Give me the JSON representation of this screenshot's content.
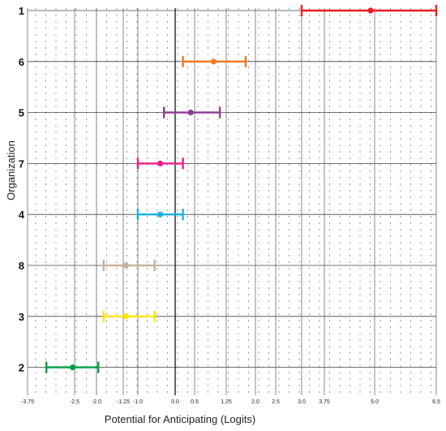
{
  "chart_data": {
    "type": "scatter",
    "subtype": "error-bar",
    "title": "",
    "xlabel": "Potential for Anticipating (Logits)",
    "ylabel": "Organization",
    "xlim": [
      -3.75,
      6.5
    ],
    "x_ticks": [
      -3.75,
      -2.5,
      -2.0,
      -1.25,
      -1.0,
      0.0,
      0.5,
      1.25,
      2.0,
      2.5,
      3.0,
      3.75,
      5.0,
      6.5
    ],
    "x_tick_labels": [
      "-3.75",
      "-2.5",
      "-2.0",
      "-1.25",
      "-1.0",
      "0.0",
      "0.5",
      "1.25",
      "2.0",
      "2.5",
      "3.0",
      "3.75",
      "5.0",
      "6.5"
    ],
    "categories": [
      "1",
      "6",
      "5",
      "7",
      "4",
      "8",
      "3",
      "2"
    ],
    "series": [
      {
        "category": "1",
        "estimate": 4.9,
        "low": 3.0,
        "high": 6.5,
        "color": "#ed1c24"
      },
      {
        "category": "6",
        "estimate": 0.95,
        "low": 0.2,
        "high": 1.75,
        "color": "#f47a20"
      },
      {
        "category": "5",
        "estimate": 0.4,
        "low": -0.3,
        "high": 1.1,
        "color": "#8e3c97"
      },
      {
        "category": "7",
        "estimate": -0.4,
        "low": -1.0,
        "high": 0.2,
        "color": "#ec1e8c"
      },
      {
        "category": "4",
        "estimate": -0.4,
        "low": -1.0,
        "high": 0.2,
        "color": "#18b1e8"
      },
      {
        "category": "8",
        "estimate": -1.2,
        "low": -1.8,
        "high": -0.55,
        "color": "#c7b299"
      },
      {
        "category": "3",
        "estimate": -1.2,
        "low": -1.8,
        "high": -0.55,
        "color": "#ffe600"
      },
      {
        "category": "2",
        "estimate": -2.55,
        "low": -3.25,
        "high": -1.95,
        "color": "#009e49"
      }
    ],
    "grid": true,
    "legend": "none"
  }
}
